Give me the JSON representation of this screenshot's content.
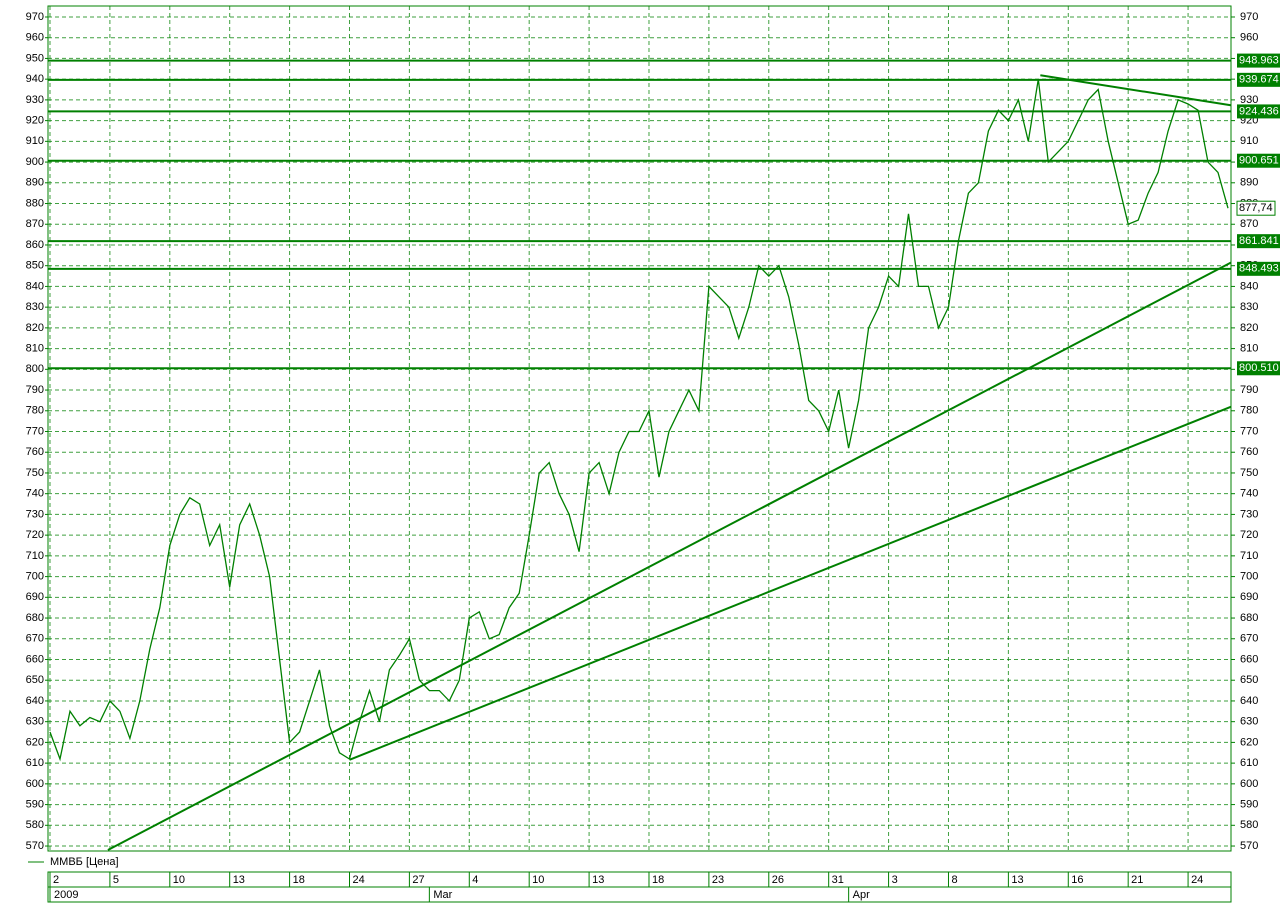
{
  "chart_data": {
    "type": "line",
    "series": [
      {
        "name": "ММВБ [Цена]",
        "color": "#008000",
        "x": [
          0,
          0.5,
          1,
          1.5,
          2,
          2.5,
          3,
          3.5,
          4,
          4.5,
          5,
          5.5,
          6,
          6.5,
          7,
          7.5,
          8,
          8.5,
          9,
          9.5,
          10,
          10.5,
          11,
          11.5,
          12,
          12.5,
          13,
          13.5,
          14,
          14.5,
          15,
          15.5,
          16,
          16.5,
          17,
          17.5,
          18,
          18.5,
          19,
          19.5,
          20,
          20.5,
          21,
          21.5,
          22,
          22.5,
          23,
          23.5,
          24,
          24.5,
          25,
          25.5,
          26,
          26.5,
          27,
          27.5,
          28,
          28.5,
          29,
          29.5,
          30,
          30.5,
          31,
          31.5,
          32,
          32.5,
          33,
          33.5,
          34,
          34.5,
          35,
          35.5,
          36,
          36.5,
          37,
          37.5,
          38,
          38.5,
          39,
          39.5,
          40,
          40.5,
          41,
          41.5,
          42,
          42.5,
          43,
          43.5,
          44,
          44.5,
          45,
          45.5,
          46,
          46.5,
          47,
          47.5,
          48,
          48.5,
          49,
          49.5,
          50,
          50.5,
          51,
          51.5,
          52,
          52.5,
          53,
          53.5,
          54,
          54.5,
          55,
          55.5,
          56,
          56.5,
          57,
          57.5,
          58,
          58.5,
          59
        ],
        "values": [
          625,
          612,
          635,
          628,
          632,
          630,
          640,
          635,
          622,
          640,
          665,
          685,
          715,
          730,
          738,
          735,
          715,
          725,
          695,
          725,
          735,
          720,
          700,
          660,
          620,
          625,
          640,
          655,
          628,
          615,
          612,
          630,
          645,
          630,
          655,
          662,
          670,
          650,
          645,
          645,
          640,
          650,
          680,
          683,
          670,
          672,
          685,
          692,
          720,
          750,
          755,
          740,
          730,
          712,
          750,
          755,
          740,
          760,
          770,
          770,
          780,
          748,
          770,
          780,
          790,
          780,
          840,
          835,
          830,
          815,
          830,
          850,
          845,
          850,
          835,
          812,
          785,
          780,
          770,
          790,
          762,
          785,
          820,
          830,
          845,
          840,
          875,
          840,
          840,
          820,
          830,
          862,
          885,
          890,
          915,
          925,
          920,
          930,
          910,
          940,
          900,
          905,
          910,
          920,
          930,
          935,
          910,
          890,
          870,
          872,
          885,
          895,
          915,
          930,
          928,
          925,
          900,
          895,
          877.74
        ]
      }
    ],
    "last_price": {
      "value": 877.74,
      "label": "877,74"
    },
    "levels": [
      948.963,
      939.674,
      924.436,
      900.651,
      861.841,
      848.493,
      {
        "value": 800.51,
        "label": "800.510"
      }
    ],
    "trendlines": [
      {
        "x": [
          2.9,
          59.14
        ],
        "y": [
          568.1,
          851.5
        ]
      },
      {
        "x": [
          15.0,
          59.14
        ],
        "y": [
          611.6,
          781.9
        ]
      },
      {
        "x": [
          49.6,
          59.14
        ],
        "y": [
          941.9,
          927.4
        ]
      }
    ],
    "xlim": [
      -0.1,
      59.15
    ],
    "ylim": [
      567.6,
      975.3
    ],
    "yticks": [
      570,
      580,
      590,
      600,
      610,
      620,
      630,
      640,
      650,
      660,
      670,
      680,
      690,
      700,
      710,
      720,
      730,
      740,
      750,
      760,
      770,
      780,
      790,
      800,
      810,
      820,
      830,
      840,
      850,
      860,
      870,
      880,
      890,
      900,
      910,
      920,
      930,
      940,
      950,
      960,
      970
    ],
    "xticks": [
      {
        "value": 0,
        "label": "2"
      },
      {
        "value": 3,
        "label": "5"
      },
      {
        "value": 6,
        "label": "10"
      },
      {
        "value": 9,
        "label": "13"
      },
      {
        "value": 12,
        "label": "18"
      },
      {
        "value": 15,
        "label": "24"
      },
      {
        "value": 18,
        "label": "27"
      },
      {
        "value": 21,
        "label": "4"
      },
      {
        "value": 24,
        "label": "10"
      },
      {
        "value": 27,
        "label": "13"
      },
      {
        "value": 30,
        "label": "18"
      },
      {
        "value": 33,
        "label": "23"
      },
      {
        "value": 36,
        "label": "26"
      },
      {
        "value": 39,
        "label": "31"
      },
      {
        "value": 42,
        "label": "3"
      },
      {
        "value": 45,
        "label": "8"
      },
      {
        "value": 48,
        "label": "13"
      },
      {
        "value": 51,
        "label": "16"
      },
      {
        "value": 54,
        "label": "21"
      },
      {
        "value": 57,
        "label": "24"
      }
    ],
    "month_ticks": [
      {
        "value": 0,
        "label": "2009"
      },
      {
        "value": 19,
        "label": "Mar"
      },
      {
        "value": 40,
        "label": "Apr"
      }
    ],
    "grid": true
  }
}
